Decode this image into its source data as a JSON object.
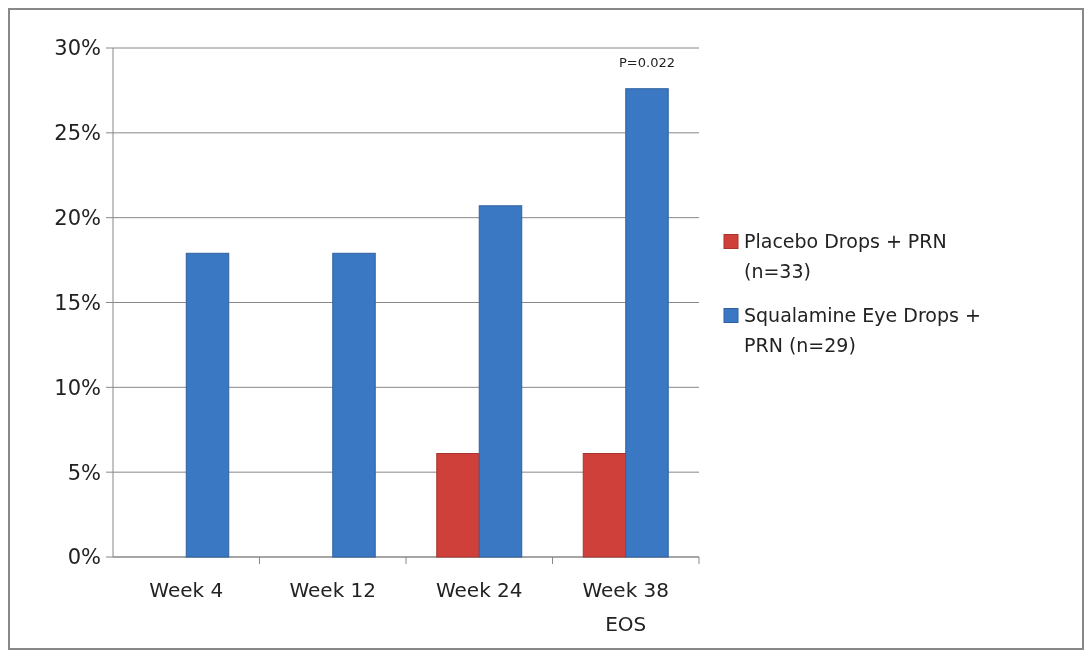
{
  "chart_data": {
    "type": "bar",
    "categories": [
      "Week 4",
      "Week 12",
      "Week 24",
      "Week 38 EOS"
    ],
    "series": [
      {
        "name": "Placebo Drops + PRN (n=33)",
        "color": "#d0403a",
        "values": [
          0,
          0,
          6.1,
          6.1
        ]
      },
      {
        "name": "Squalamine Eye Drops + PRN (n=29)",
        "color": "#3b78c4",
        "values": [
          17.9,
          17.9,
          20.7,
          27.6
        ]
      }
    ],
    "ylim": [
      0,
      30
    ],
    "yticks": [
      {
        "value": 0,
        "label": "0%"
      },
      {
        "value": 5,
        "label": "5%"
      },
      {
        "value": 10,
        "label": "10%"
      },
      {
        "value": 15,
        "label": "15%"
      },
      {
        "value": 20,
        "label": "20%"
      },
      {
        "value": 25,
        "label": "25%"
      },
      {
        "value": 30,
        "label": "30%"
      }
    ],
    "grid": "y",
    "legend": "right",
    "annotations": [
      {
        "text": "P=0.022",
        "x": "Week 38 EOS",
        "y": 27.6
      }
    ]
  }
}
